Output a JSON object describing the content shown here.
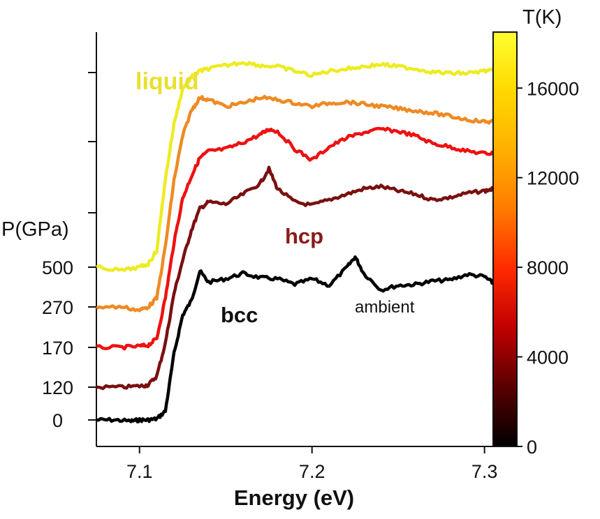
{
  "chart_data": {
    "type": "line",
    "xlabel": "Energy (eV)",
    "ylabel": "P(GPa)",
    "xlim": [
      7.075,
      7.305
    ],
    "x_ticks": [
      "7.1",
      "7.2",
      "7.3"
    ],
    "y_axis_ticks_unlabeled": true,
    "grid": false,
    "series": [
      {
        "name": "0",
        "color": "#000000",
        "x": [
          7.075,
          7.085,
          7.095,
          7.1,
          7.105,
          7.11,
          7.115,
          7.12,
          7.125,
          7.13,
          7.135,
          7.14,
          7.15,
          7.16,
          7.17,
          7.18,
          7.19,
          7.2,
          7.21,
          7.22,
          7.225,
          7.23,
          7.24,
          7.25,
          7.26,
          7.27,
          7.28,
          7.29,
          7.3,
          7.305
        ],
        "y": [
          0.0,
          0.0,
          -0.01,
          0.0,
          0.0,
          0.01,
          0.08,
          0.6,
          0.95,
          1.08,
          1.35,
          1.25,
          1.28,
          1.33,
          1.29,
          1.28,
          1.23,
          1.28,
          1.22,
          1.38,
          1.48,
          1.33,
          1.18,
          1.22,
          1.23,
          1.26,
          1.27,
          1.32,
          1.3,
          1.24
        ]
      },
      {
        "name": "120",
        "color": "#7a0f0f",
        "x": [
          7.075,
          7.09,
          7.1,
          7.105,
          7.11,
          7.115,
          7.12,
          7.125,
          7.13,
          7.135,
          7.14,
          7.15,
          7.16,
          7.17,
          7.175,
          7.18,
          7.19,
          7.2,
          7.21,
          7.22,
          7.23,
          7.24,
          7.25,
          7.26,
          7.27,
          7.28,
          7.29,
          7.3,
          7.305
        ],
        "y": [
          0.0,
          0.0,
          0.01,
          0.02,
          0.1,
          0.4,
          0.85,
          1.15,
          1.42,
          1.62,
          1.68,
          1.66,
          1.75,
          1.85,
          1.98,
          1.8,
          1.68,
          1.65,
          1.7,
          1.75,
          1.8,
          1.82,
          1.78,
          1.75,
          1.7,
          1.72,
          1.76,
          1.78,
          1.8
        ]
      },
      {
        "name": "170",
        "color": "#ee1111",
        "x": [
          7.075,
          7.09,
          7.1,
          7.105,
          7.11,
          7.115,
          7.12,
          7.125,
          7.13,
          7.135,
          7.14,
          7.15,
          7.16,
          7.17,
          7.175,
          7.18,
          7.19,
          7.2,
          7.21,
          7.22,
          7.23,
          7.24,
          7.25,
          7.26,
          7.27,
          7.28,
          7.29,
          7.3,
          7.305
        ],
        "y": [
          0.0,
          0.0,
          0.01,
          0.02,
          0.08,
          0.45,
          0.95,
          1.35,
          1.55,
          1.72,
          1.78,
          1.8,
          1.86,
          1.93,
          1.98,
          1.96,
          1.8,
          1.7,
          1.82,
          1.9,
          1.95,
          1.98,
          1.96,
          1.92,
          1.85,
          1.82,
          1.78,
          1.76,
          1.76
        ]
      },
      {
        "name": "270",
        "color": "#ee8a22",
        "x": [
          7.075,
          7.09,
          7.1,
          7.105,
          7.11,
          7.115,
          7.12,
          7.125,
          7.13,
          7.135,
          7.14,
          7.15,
          7.16,
          7.17,
          7.18,
          7.19,
          7.2,
          7.21,
          7.22,
          7.23,
          7.24,
          7.25,
          7.26,
          7.27,
          7.28,
          7.29,
          7.3,
          7.305
        ],
        "y": [
          0.0,
          0.0,
          -0.03,
          0.0,
          0.08,
          0.55,
          1.15,
          1.55,
          1.78,
          1.9,
          1.88,
          1.82,
          1.85,
          1.9,
          1.88,
          1.85,
          1.82,
          1.85,
          1.86,
          1.84,
          1.82,
          1.8,
          1.78,
          1.76,
          1.73,
          1.7,
          1.68,
          1.68
        ]
      },
      {
        "name": "500",
        "color": "#ecec22",
        "x": [
          7.075,
          7.09,
          7.1,
          7.105,
          7.11,
          7.115,
          7.12,
          7.125,
          7.13,
          7.135,
          7.14,
          7.15,
          7.16,
          7.17,
          7.18,
          7.19,
          7.2,
          7.21,
          7.22,
          7.23,
          7.24,
          7.25,
          7.26,
          7.27,
          7.28,
          7.29,
          7.3,
          7.305
        ],
        "y": [
          0.0,
          -0.03,
          0.0,
          0.03,
          0.15,
          0.8,
          1.3,
          1.62,
          1.72,
          1.78,
          1.8,
          1.83,
          1.86,
          1.83,
          1.82,
          1.78,
          1.74,
          1.78,
          1.8,
          1.82,
          1.84,
          1.82,
          1.8,
          1.77,
          1.76,
          1.76,
          1.78,
          1.78
        ]
      }
    ],
    "annotations": [
      {
        "text": "liquid",
        "color": "#e8e030"
      },
      {
        "text": "hcp",
        "color": "#8a1a1a"
      },
      {
        "text": "bcc",
        "color": "#111111"
      },
      {
        "text": "ambient",
        "color": "#111111"
      }
    ],
    "colorbar": {
      "title": "T(K)",
      "ticks": [
        "0",
        "4000",
        "8000",
        "12000",
        "16000"
      ],
      "tick_values": [
        0,
        4000,
        8000,
        12000,
        16000
      ],
      "range": [
        0,
        18500
      ],
      "colormap": [
        "#000000",
        "#5a0000",
        "#c00000",
        "#ff2a00",
        "#ff7a00",
        "#ffb000",
        "#ffd800",
        "#ffff30"
      ]
    }
  }
}
